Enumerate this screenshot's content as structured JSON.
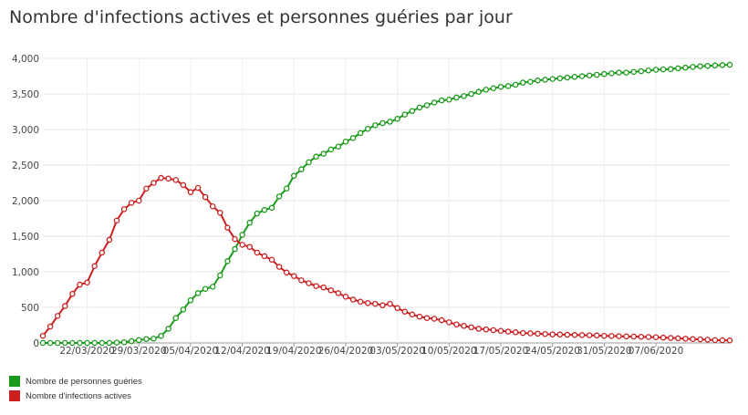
{
  "chart_data": {
    "type": "line",
    "title": "Nombre d'infections actives et personnes guéries par jour",
    "xlabel": "",
    "ylabel": "",
    "ylim": [
      0,
      4000
    ],
    "y_ticks": [
      "0",
      "500",
      "1,000",
      "1,500",
      "2,000",
      "2,500",
      "3,000",
      "3,500",
      "4,000"
    ],
    "y_tick_values": [
      0,
      500,
      1000,
      1500,
      2000,
      2500,
      3000,
      3500,
      4000
    ],
    "x_start": "16/03/2020",
    "x_tick_labels": [
      "22/03/2020",
      "29/03/2020",
      "05/04/2020",
      "12/04/2020",
      "19/04/2020",
      "26/04/2020",
      "03/05/2020",
      "10/05/2020",
      "17/05/2020",
      "24/05/2020",
      "31/05/2020",
      "07/06/2020"
    ],
    "grid": true,
    "legend_position": "bottom-left",
    "series": [
      {
        "name": "Nombre de personnes guéries",
        "color": "#1a9a1a",
        "values": [
          0,
          0,
          0,
          0,
          0,
          0,
          0,
          0,
          0,
          0,
          5,
          10,
          25,
          40,
          55,
          60,
          100,
          200,
          350,
          470,
          600,
          700,
          760,
          790,
          950,
          1150,
          1320,
          1520,
          1690,
          1820,
          1870,
          1900,
          2060,
          2170,
          2350,
          2440,
          2540,
          2620,
          2660,
          2720,
          2760,
          2830,
          2880,
          2950,
          3010,
          3060,
          3090,
          3110,
          3150,
          3210,
          3260,
          3310,
          3340,
          3380,
          3410,
          3420,
          3450,
          3470,
          3500,
          3530,
          3560,
          3580,
          3600,
          3610,
          3630,
          3660,
          3670,
          3690,
          3700,
          3710,
          3720,
          3730,
          3740,
          3750,
          3760,
          3770,
          3780,
          3790,
          3800,
          3800,
          3810,
          3820,
          3830,
          3840,
          3845,
          3850,
          3860,
          3870,
          3880,
          3890,
          3895,
          3900,
          3905,
          3910
        ]
      },
      {
        "name": "Nombre d'infections actives",
        "color": "#cc1f1f",
        "values": [
          100,
          230,
          380,
          520,
          690,
          820,
          850,
          1080,
          1270,
          1450,
          1720,
          1880,
          1970,
          2000,
          2170,
          2250,
          2320,
          2310,
          2290,
          2220,
          2120,
          2180,
          2050,
          1920,
          1830,
          1620,
          1460,
          1380,
          1350,
          1270,
          1220,
          1170,
          1070,
          990,
          940,
          880,
          840,
          800,
          780,
          740,
          700,
          650,
          610,
          580,
          560,
          550,
          530,
          550,
          490,
          440,
          400,
          370,
          350,
          340,
          320,
          290,
          260,
          240,
          220,
          200,
          190,
          180,
          170,
          160,
          150,
          140,
          135,
          130,
          125,
          120,
          118,
          115,
          112,
          110,
          108,
          105,
          100,
          98,
          95,
          92,
          90,
          87,
          84,
          80,
          75,
          70,
          65,
          60,
          55,
          50,
          45,
          40,
          38,
          35
        ]
      }
    ]
  }
}
